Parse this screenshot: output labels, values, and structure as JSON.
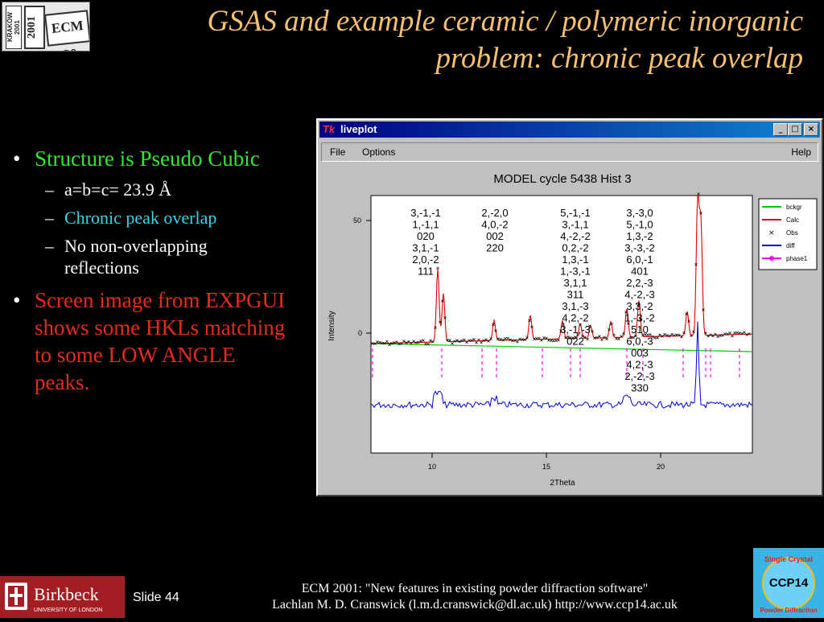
{
  "logo": {
    "stamp": "KRAKÓW 2001",
    "box1": "2001",
    "box2": "ECM 20"
  },
  "title": "GSAS and example ceramic / polymeric inorganic problem: chronic peak overlap",
  "bullets": {
    "b1": "Structure is Pseudo Cubic",
    "s1": "a=b=c= 23.9 Å",
    "s2": "Chronic peak overlap",
    "s3": "No non-overlapping reflections",
    "b2": "Screen image from EXPGUI shows some HKLs matching to some LOW ANGLE peaks.",
    "dash": "–",
    "colors": {
      "green": "#33e633",
      "cyan": "#33d6e6",
      "red": "#e62b1e",
      "white": "#ffffff"
    }
  },
  "window": {
    "title": "liveplot",
    "tk": "Tk",
    "min": "_",
    "max": "□",
    "close": "×",
    "menu": {
      "file": "File",
      "options": "Options",
      "help": "Help"
    }
  },
  "plot": {
    "title": "MODEL cycle 5438 Hist 3",
    "xlabel": "2Theta",
    "ylabel": "Intensity",
    "yticks": [
      "50",
      "0"
    ],
    "xticks": [
      "10",
      "15",
      "20"
    ],
    "legend": [
      {
        "name": "bckgr",
        "color": "#00cc00"
      },
      {
        "name": "Calc",
        "color": "#e00000"
      },
      {
        "name": "Obs",
        "color": "#000000"
      },
      {
        "name": "diff",
        "color": "#0000e0"
      },
      {
        "name": "phase1",
        "color": "#ff00ff"
      }
    ],
    "hkl_groups": [
      {
        "labels": [
          "3,-1,-1",
          "1,-1,1",
          "020",
          "3,1,-1",
          "2,0,-2",
          "111"
        ]
      },
      {
        "labels": [
          "2,-2,0",
          "4,0,-2",
          "002",
          "220"
        ]
      },
      {
        "labels": [
          "5,-1,-1",
          "3,-1,1",
          "4,-2,-2",
          "0,2,-2",
          "1,3,-1",
          "1,-3,-1",
          "3,1,1",
          "311",
          "3,1,-3",
          "4,2,-2",
          "3,-1,-3",
          "022"
        ]
      },
      {
        "labels": [
          "3,-3,0",
          "5,-1,0",
          "1,3,-2",
          "3,-3,-2",
          "6,0,-1",
          "401",
          "2,2,-3",
          "4,-2,-3",
          "3,3,-2",
          "1,-3,-2",
          "510",
          "6,0,-3",
          "003",
          "4,2,-3",
          "2,-2,-3",
          "330"
        ]
      }
    ]
  },
  "footer": {
    "birkbeck": "Birkbeck",
    "university": "UNIVERSITY OF LONDON",
    "slide": "Slide 44",
    "line1": "ECM 2001: \"New features in existing powder diffraction software\"",
    "line2": "Lachlan M. D. Cranswick (l.m.d.cranswick@dl.ac.uk) http://www.ccp14.ac.uk"
  },
  "ccp14": {
    "top": "Single Crystal",
    "mid": "CCP14",
    "bottom": "Powder Diffraction"
  }
}
